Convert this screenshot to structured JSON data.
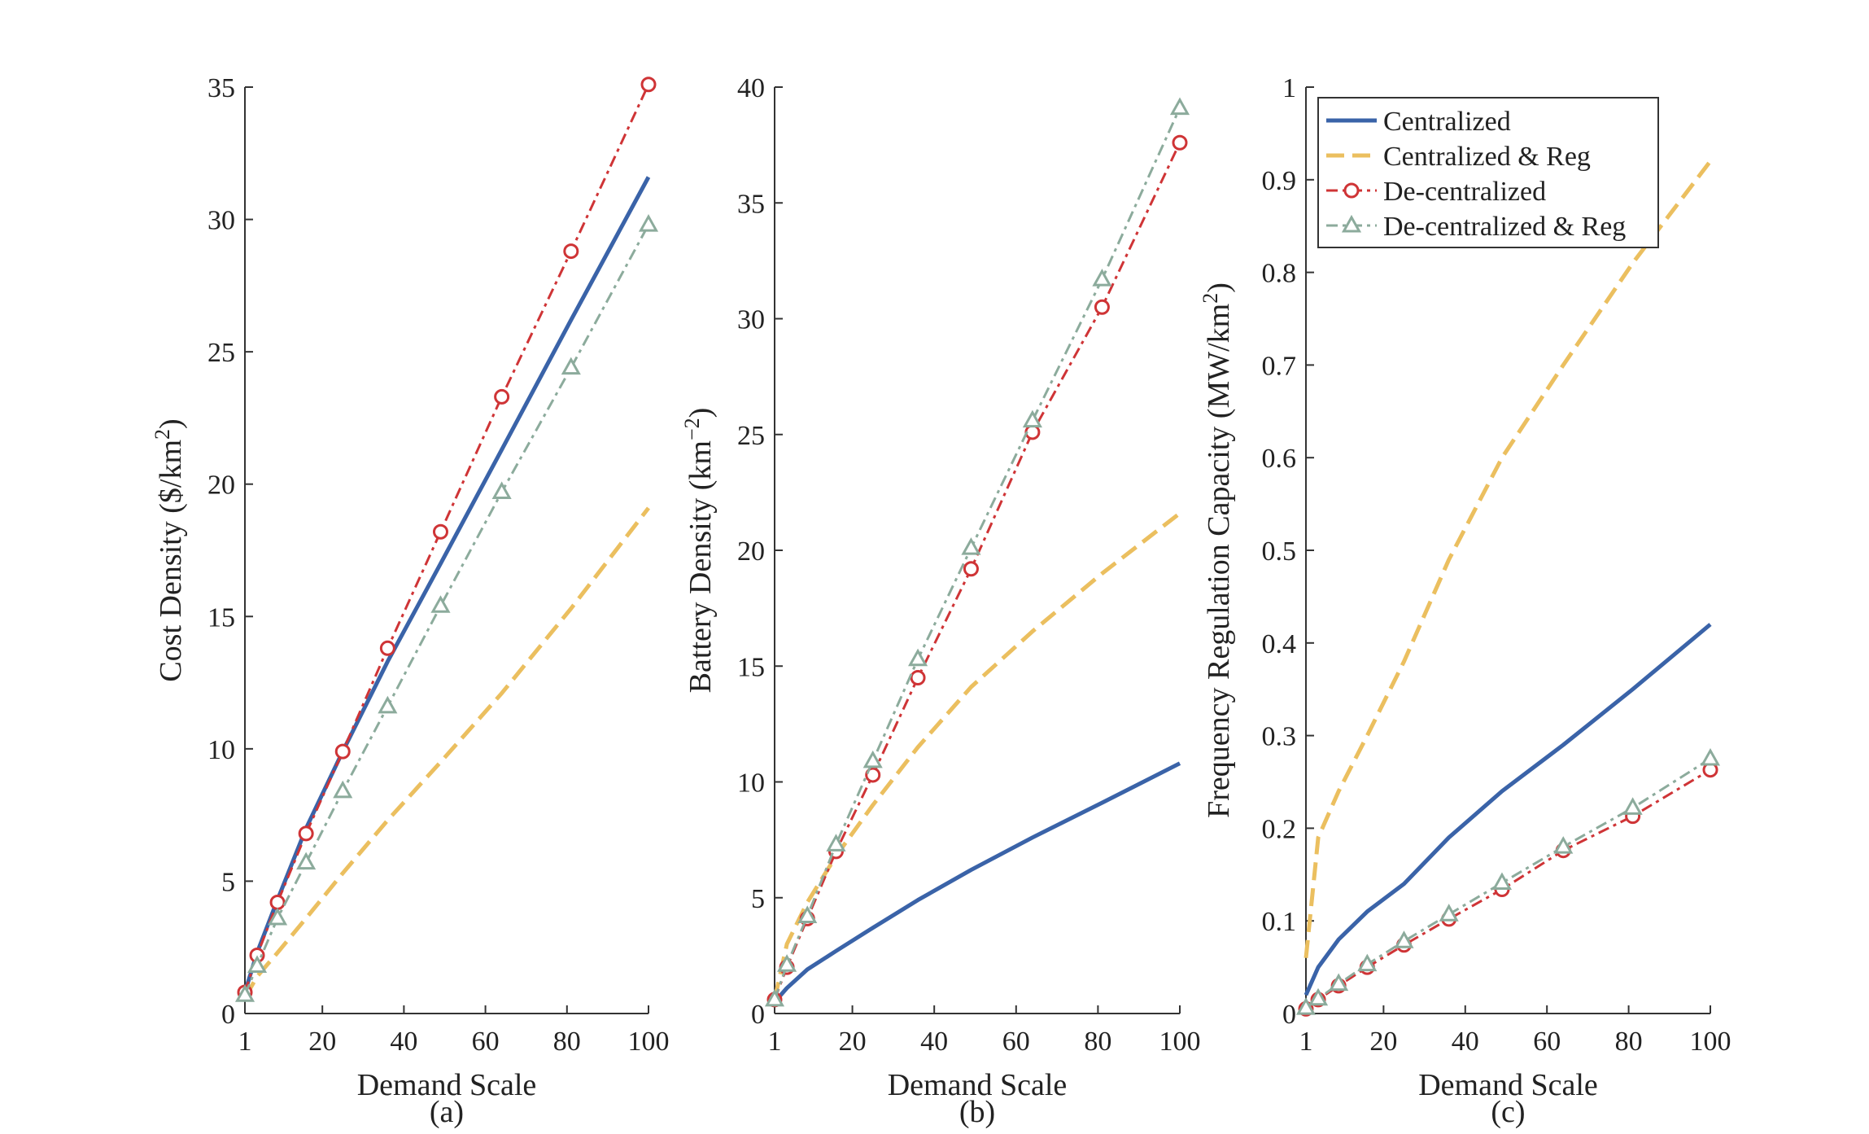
{
  "colors": {
    "centralized": "#3a63a8",
    "centralized_reg": "#ebbf5f",
    "decentralized": "#cf3436",
    "decentralized_reg": "#8cab9c",
    "axis": "#333333"
  },
  "legend": {
    "placement": "top-left of panel (c)",
    "entries": [
      "Centralized",
      "Centralized & Reg",
      "De-centralized",
      "De-centralized & Reg"
    ]
  },
  "chart_data": [
    {
      "type": "line",
      "caption": "(a)",
      "xlabel": "Demand Scale",
      "ylabel": "Cost Density ($/km²)",
      "xlim": [
        1,
        100
      ],
      "ylim": [
        0,
        35
      ],
      "xticks": [
        1,
        20,
        40,
        60,
        80,
        100
      ],
      "yticks": [
        0,
        5,
        10,
        15,
        20,
        25,
        30,
        35
      ],
      "grid": false,
      "series": [
        {
          "name": "Centralized",
          "key": "centralized",
          "style": "solid",
          "marker": "none",
          "x": [
            1,
            4,
            9,
            16,
            25,
            36,
            49,
            64,
            81,
            100
          ],
          "y": [
            0.8,
            2.3,
            4.3,
            7.0,
            9.9,
            13.3,
            17.0,
            21.3,
            26.2,
            31.6
          ]
        },
        {
          "name": "Centralized & Reg",
          "key": "centralized_reg",
          "style": "dashed",
          "marker": "none",
          "x": [
            1,
            4,
            9,
            16,
            25,
            36,
            49,
            64,
            81,
            100
          ],
          "y": [
            0.6,
            1.4,
            2.3,
            3.6,
            5.3,
            7.3,
            9.5,
            12.1,
            15.3,
            19.1
          ]
        },
        {
          "name": "De-centralized",
          "key": "decentralized",
          "style": "dashdot",
          "marker": "circle",
          "x": [
            1,
            4,
            9,
            16,
            25,
            36,
            49,
            64,
            81,
            100
          ],
          "y": [
            0.8,
            2.2,
            4.2,
            6.8,
            9.9,
            13.8,
            18.2,
            23.3,
            28.8,
            35.1
          ]
        },
        {
          "name": "De-centralized & Reg",
          "key": "decentralized_reg",
          "style": "dashdot",
          "marker": "triangle",
          "x": [
            1,
            4,
            9,
            16,
            25,
            36,
            49,
            64,
            81,
            100
          ],
          "y": [
            0.7,
            1.8,
            3.6,
            5.7,
            8.4,
            11.6,
            15.4,
            19.7,
            24.4,
            29.8
          ]
        }
      ]
    },
    {
      "type": "line",
      "caption": "(b)",
      "xlabel": "Demand Scale",
      "ylabel": "Battery Density (km⁻²)",
      "xlim": [
        1,
        100
      ],
      "ylim": [
        0,
        40
      ],
      "xticks": [
        1,
        20,
        40,
        60,
        80,
        100
      ],
      "yticks": [
        0,
        5,
        10,
        15,
        20,
        25,
        30,
        35,
        40
      ],
      "grid": false,
      "series": [
        {
          "name": "Centralized",
          "key": "centralized",
          "style": "solid",
          "marker": "none",
          "x": [
            1,
            4,
            9,
            16,
            25,
            36,
            49,
            64,
            81,
            100
          ],
          "y": [
            0.5,
            1.1,
            1.9,
            2.7,
            3.7,
            4.9,
            6.2,
            7.6,
            9.1,
            10.8
          ]
        },
        {
          "name": "Centralized & Reg",
          "key": "centralized_reg",
          "style": "dashed",
          "marker": "none",
          "x": [
            1,
            4,
            9,
            16,
            25,
            36,
            49,
            64,
            81,
            100
          ],
          "y": [
            0.6,
            3.0,
            4.8,
            6.8,
            9.0,
            11.5,
            14.1,
            16.5,
            19.0,
            21.6
          ]
        },
        {
          "name": "De-centralized",
          "key": "decentralized",
          "style": "dashdot",
          "marker": "circle",
          "x": [
            1,
            4,
            9,
            16,
            25,
            36,
            49,
            64,
            81,
            100
          ],
          "y": [
            0.6,
            2.0,
            4.1,
            7.0,
            10.3,
            14.5,
            19.2,
            25.1,
            30.5,
            37.6
          ]
        },
        {
          "name": "De-centralized & Reg",
          "key": "decentralized_reg",
          "style": "dashdot",
          "marker": "triangle",
          "x": [
            1,
            4,
            9,
            16,
            25,
            36,
            49,
            64,
            81,
            100
          ],
          "y": [
            0.6,
            2.1,
            4.2,
            7.3,
            10.9,
            15.3,
            20.1,
            25.6,
            31.7,
            39.1
          ]
        }
      ]
    },
    {
      "type": "line",
      "caption": "(c)",
      "xlabel": "Demand Scale",
      "ylabel": "Frequency Regulation Capacity (MW/km²)",
      "xlim": [
        1,
        100
      ],
      "ylim": [
        0,
        1
      ],
      "xticks": [
        1,
        20,
        40,
        60,
        80,
        100
      ],
      "yticks": [
        0,
        0.1,
        0.2,
        0.3,
        0.4,
        0.5,
        0.6,
        0.7,
        0.8,
        0.9,
        1
      ],
      "grid": false,
      "series": [
        {
          "name": "Centralized",
          "key": "centralized",
          "style": "solid",
          "marker": "none",
          "x": [
            1,
            4,
            9,
            16,
            25,
            36,
            49,
            64,
            81,
            100
          ],
          "y": [
            0.02,
            0.05,
            0.08,
            0.11,
            0.14,
            0.19,
            0.24,
            0.29,
            0.35,
            0.42
          ]
        },
        {
          "name": "Centralized & Reg",
          "key": "centralized_reg",
          "style": "dashed",
          "marker": "none",
          "x": [
            1,
            4,
            9,
            16,
            25,
            36,
            49,
            64,
            81,
            100
          ],
          "y": [
            0.06,
            0.19,
            0.24,
            0.3,
            0.38,
            0.49,
            0.6,
            0.7,
            0.81,
            0.92
          ]
        },
        {
          "name": "De-centralized",
          "key": "decentralized",
          "style": "dashdot",
          "marker": "circle",
          "x": [
            1,
            4,
            9,
            16,
            25,
            36,
            49,
            64,
            81,
            100
          ],
          "y": [
            0.005,
            0.015,
            0.03,
            0.05,
            0.074,
            0.102,
            0.134,
            0.176,
            0.213,
            0.263
          ]
        },
        {
          "name": "De-centralized & Reg",
          "key": "decentralized_reg",
          "style": "dashdot",
          "marker": "triangle",
          "x": [
            1,
            4,
            9,
            16,
            25,
            36,
            49,
            64,
            81,
            100
          ],
          "y": [
            0.006,
            0.016,
            0.032,
            0.053,
            0.078,
            0.107,
            0.141,
            0.18,
            0.222,
            0.275
          ]
        }
      ]
    }
  ]
}
